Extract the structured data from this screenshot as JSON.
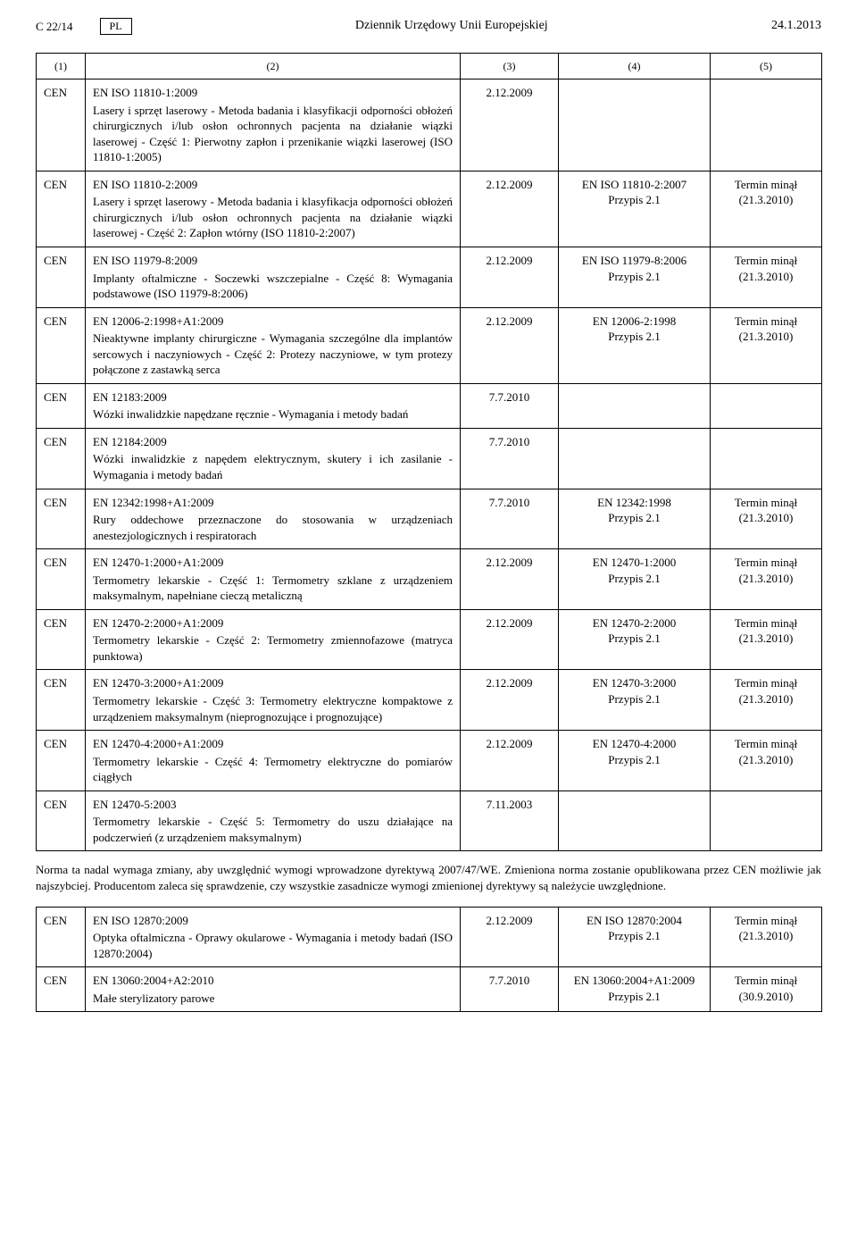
{
  "header": {
    "doc_ref": "C 22/14",
    "lang": "PL",
    "journal": "Dziennik Urzędowy Unii Europejskiej",
    "date": "24.1.2013"
  },
  "column_labels": [
    "(1)",
    "(2)",
    "(3)",
    "(4)",
    "(5)"
  ],
  "note": "Norma ta nadal wymaga zmiany, aby uwzględnić wymogi wprowadzone dyrektywą 2007/47/WE. Zmieniona norma zostanie opublikowana przez CEN możliwie jak najszybciej. Producentom zaleca się sprawdzenie, czy wszystkie zasadnicze wymogi zmienionej dyrektywy są należycie uwzględnione.",
  "rows1": [
    {
      "org": "CEN",
      "title": "EN ISO 11810-1:2009",
      "text": "Lasery i sprzęt laserowy - Metoda badania i klasyfikacji odporności obłożeń chirurgicznych i/lub osłon ochronnych pacjenta na działanie wiązki laserowej - Część 1: Pierwotny zapłon i przenikanie wiązki laserowej (ISO 11810-1:2005)",
      "col3": "2.12.2009",
      "col4_ref": "",
      "col4_note": "",
      "col5_line1": "",
      "col5_line2": ""
    },
    {
      "org": "CEN",
      "title": "EN ISO 11810-2:2009",
      "text": "Lasery i sprzęt laserowy - Metoda badania i klasyfikacja odporności obłożeń chirurgicznych i/lub osłon ochronnych pacjenta na działanie wiązki laserowej - Część 2: Zapłon wtórny (ISO 11810-2:2007)",
      "col3": "2.12.2009",
      "col4_ref": "EN ISO 11810-2:2007",
      "col4_note": "Przypis 2.1",
      "col5_line1": "Termin minął",
      "col5_line2": "(21.3.2010)"
    },
    {
      "org": "CEN",
      "title": "EN ISO 11979-8:2009",
      "text": "Implanty oftalmiczne - Soczewki wszczepialne - Część 8: Wymagania podstawowe (ISO 11979-8:2006)",
      "col3": "2.12.2009",
      "col4_ref": "EN ISO 11979-8:2006",
      "col4_note": "Przypis 2.1",
      "col5_line1": "Termin minął",
      "col5_line2": "(21.3.2010)"
    },
    {
      "org": "CEN",
      "title": "EN 12006-2:1998+A1:2009",
      "text": "Nieaktywne implanty chirurgiczne - Wymagania szczególne dla implantów sercowych i naczyniowych - Część 2: Protezy naczyniowe, w tym protezy połączone z zastawką serca",
      "col3": "2.12.2009",
      "col4_ref": "EN 12006-2:1998",
      "col4_note": "Przypis 2.1",
      "col5_line1": "Termin minął",
      "col5_line2": "(21.3.2010)"
    },
    {
      "org": "CEN",
      "title": "EN 12183:2009",
      "text": "Wózki inwalidzkie napędzane ręcznie - Wymagania i metody badań",
      "col3": "7.7.2010",
      "col4_ref": "",
      "col4_note": "",
      "col5_line1": "",
      "col5_line2": ""
    },
    {
      "org": "CEN",
      "title": "EN 12184:2009",
      "text": "Wózki inwalidzkie z napędem elektrycznym, skutery i ich zasilanie - Wymagania i metody badań",
      "col3": "7.7.2010",
      "col4_ref": "",
      "col4_note": "",
      "col5_line1": "",
      "col5_line2": ""
    },
    {
      "org": "CEN",
      "title": "EN 12342:1998+A1:2009",
      "text": "Rury oddechowe przeznaczone do stosowania w urządzeniach anestezjologicznych i respiratorach",
      "col3": "7.7.2010",
      "col4_ref": "EN 12342:1998",
      "col4_note": "Przypis 2.1",
      "col5_line1": "Termin minął",
      "col5_line2": "(21.3.2010)"
    },
    {
      "org": "CEN",
      "title": "EN 12470-1:2000+A1:2009",
      "text": "Termometry lekarskie - Część 1: Termometry szklane z urządzeniem maksymalnym, napełniane cieczą metaliczną",
      "col3": "2.12.2009",
      "col4_ref": "EN 12470-1:2000",
      "col4_note": "Przypis 2.1",
      "col5_line1": "Termin minął",
      "col5_line2": "(21.3.2010)"
    },
    {
      "org": "CEN",
      "title": "EN 12470-2:2000+A1:2009",
      "text": "Termometry lekarskie - Część 2: Termometry zmiennofazowe (matryca punktowa)",
      "col3": "2.12.2009",
      "col4_ref": "EN 12470-2:2000",
      "col4_note": "Przypis 2.1",
      "col5_line1": "Termin minął",
      "col5_line2": "(21.3.2010)"
    },
    {
      "org": "CEN",
      "title": "EN 12470-3:2000+A1:2009",
      "text": "Termometry lekarskie - Część 3: Termometry elektryczne kompaktowe z urządzeniem maksymalnym (nieprognozujące i prognozujące)",
      "col3": "2.12.2009",
      "col4_ref": "EN 12470-3:2000",
      "col4_note": "Przypis 2.1",
      "col5_line1": "Termin minął",
      "col5_line2": "(21.3.2010)"
    },
    {
      "org": "CEN",
      "title": "EN 12470-4:2000+A1:2009",
      "text": "Termometry lekarskie - Część 4: Termometry elektryczne do pomiarów ciągłych",
      "col3": "2.12.2009",
      "col4_ref": "EN 12470-4:2000",
      "col4_note": "Przypis 2.1",
      "col5_line1": "Termin minął",
      "col5_line2": "(21.3.2010)"
    },
    {
      "org": "CEN",
      "title": "EN 12470-5:2003",
      "text": "Termometry lekarskie - Część 5: Termometry do uszu działające na podczerwień (z urządzeniem maksymalnym)",
      "col3": "7.11.2003",
      "col4_ref": "",
      "col4_note": "",
      "col5_line1": "",
      "col5_line2": ""
    }
  ],
  "rows2": [
    {
      "org": "CEN",
      "title": "EN ISO 12870:2009",
      "text": "Optyka oftalmiczna - Oprawy okularowe - Wymagania i metody badań (ISO 12870:2004)",
      "col3": "2.12.2009",
      "col4_ref": "EN ISO 12870:2004",
      "col4_note": "Przypis 2.1",
      "col5_line1": "Termin minął",
      "col5_line2": "(21.3.2010)"
    },
    {
      "org": "CEN",
      "title": "EN 13060:2004+A2:2010",
      "text": "Małe sterylizatory parowe",
      "col3": "7.7.2010",
      "col4_ref": "EN 13060:2004+A1:2009",
      "col4_note": "Przypis 2.1",
      "col5_line1": "Termin minął",
      "col5_line2": "(30.9.2010)"
    }
  ]
}
